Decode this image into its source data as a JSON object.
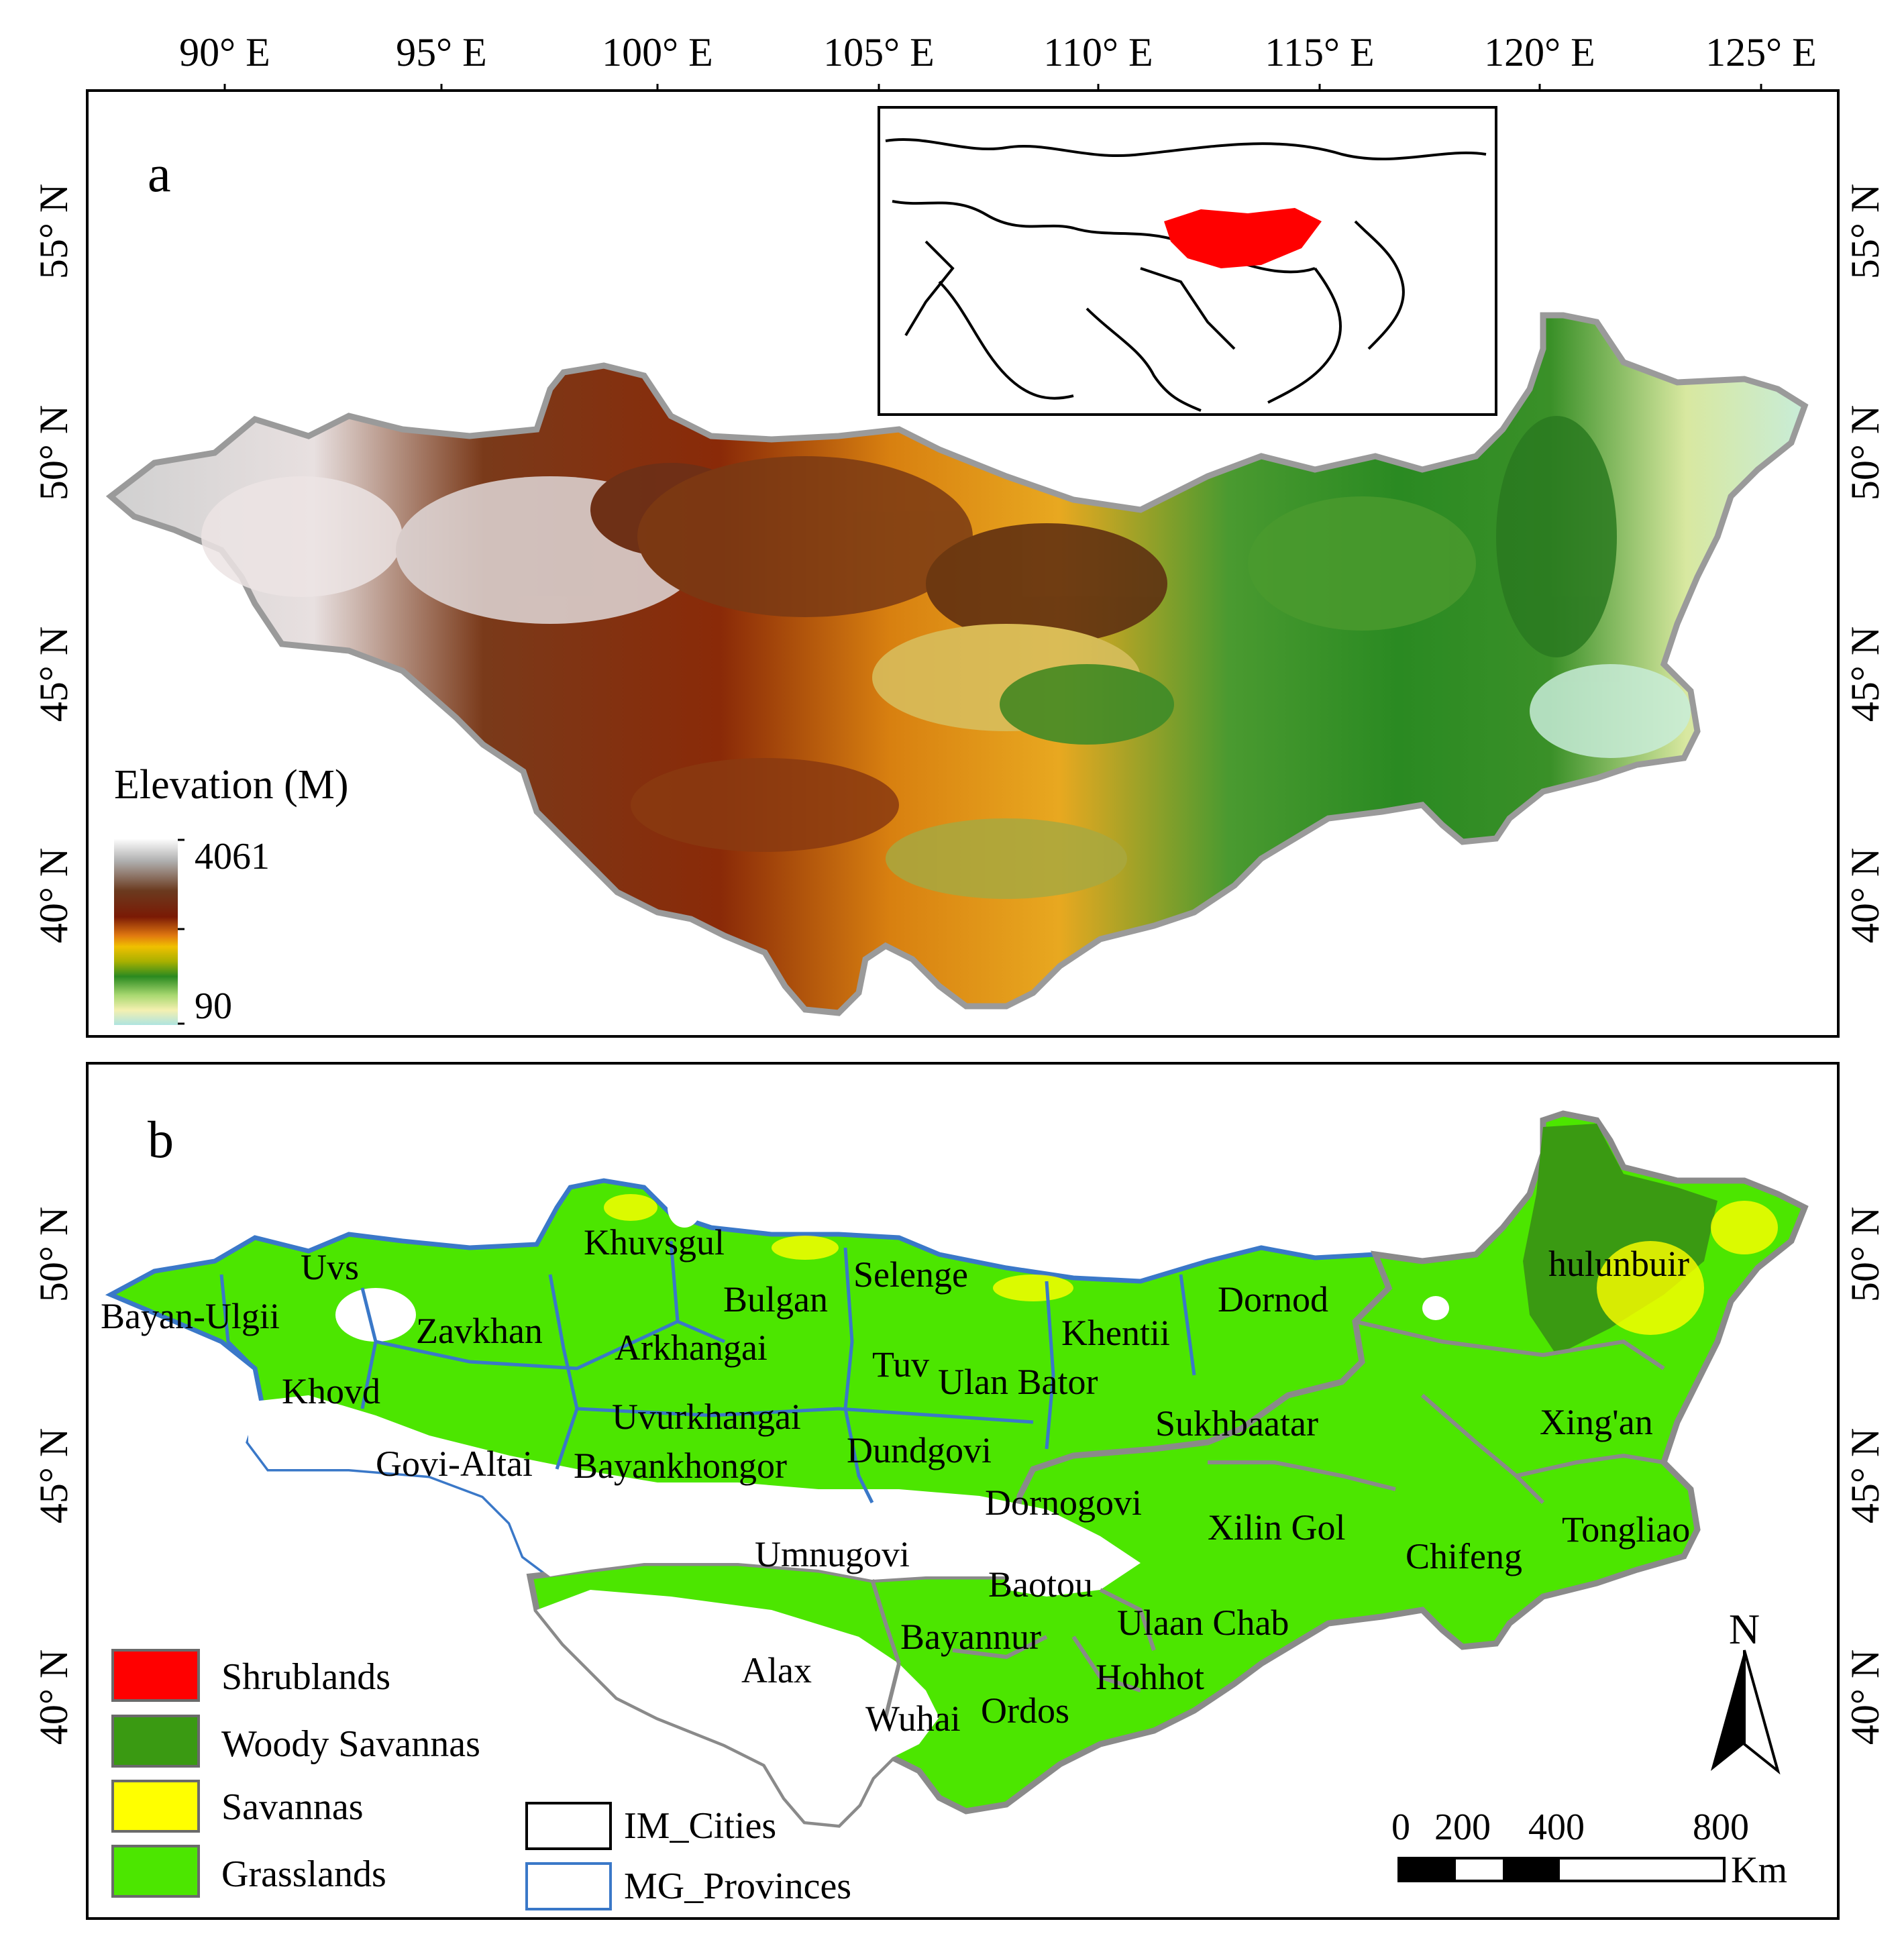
{
  "top_longitude_labels": [
    "90° E",
    "95° E",
    "100° E",
    "105° E",
    "110° E",
    "115° E",
    "120° E",
    "125° E"
  ],
  "latitude_labels_a": [
    "55° N",
    "50° N",
    "45° N",
    "40° N"
  ],
  "latitude_labels_b": [
    "50° N",
    "45° N",
    "40° N"
  ],
  "panel_a": {
    "letter": "a",
    "legend_title": "Elevation (M)",
    "legend_max": "4061",
    "legend_min": "90",
    "ramp_colors": [
      "#ffffff",
      "#a8a8a8",
      "#6b3a1f",
      "#7a1a05",
      "#e07810",
      "#f0c000",
      "#c0b000",
      "#2a8a20",
      "#8ec858",
      "#f4f0b0",
      "#aee4e0"
    ]
  },
  "panel_b": {
    "letter": "b",
    "legend": [
      {
        "label": "Shrublands",
        "color": "#ff0000"
      },
      {
        "label": "Woody Savannas",
        "color": "#3a9a12"
      },
      {
        "label": "Savannas",
        "color": "#ffff00"
      },
      {
        "label": "Grasslands",
        "color": "#4ce600"
      }
    ],
    "boundary_legend": [
      {
        "label": "IM_Cities",
        "color": "#000000"
      },
      {
        "label": "MG_Provinces",
        "color": "#3a78c8"
      }
    ],
    "regions": [
      "Uvs",
      "Bayan-Ulgii",
      "Khuvsgul",
      "Zavkhan",
      "Bulgan",
      "Selenge",
      "Arkhangai",
      "Khovd",
      "Tuv",
      "Ulan Bator",
      "Khentii",
      "Dornod",
      "hulunbuir",
      "Uvurkhangai",
      "Sukhbaatar",
      "Xing'an",
      "Govi-Altai",
      "Bayankhongor",
      "Dundgovi",
      "Dornogovi",
      "Xilin Gol",
      "Tongliao",
      "Chifeng",
      "Umnugovi",
      "Baotou",
      "Ulaan Chab",
      "Bayannur",
      "Alax",
      "Hohhot",
      "Wuhai",
      "Ordos"
    ],
    "north_label": "N",
    "scale_ticks": [
      "0",
      "200",
      "400",
      "800"
    ],
    "scale_unit": "Km"
  }
}
